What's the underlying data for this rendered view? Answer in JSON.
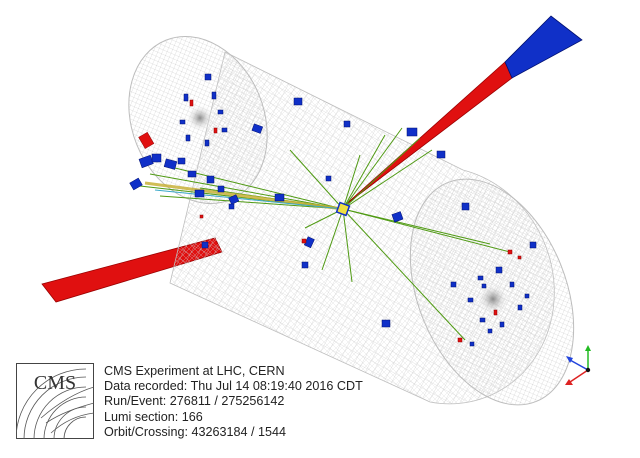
{
  "event_display": {
    "experiment_line": "CMS Experiment at LHC, CERN",
    "recorded_line": "Data recorded: Thu Jul 14 08:19:40 2016 CDT",
    "run_event_line": "Run/Event: 276811 / 275256142",
    "lumi_line": "Lumi section: 166",
    "orbit_line": "Orbit/Crossing: 43263184 / 1544"
  },
  "logo": {
    "text": "CMS"
  },
  "colors": {
    "detector_mesh": "#c9c9c9",
    "hcal_deposit": "#1030c8",
    "ecal_deposit": "#e01010",
    "track": "#4f9a12",
    "muon_track": "#c8b23a",
    "axis_x": "#dd2222",
    "axis_y": "#22bb22",
    "axis_z": "#2244dd"
  }
}
